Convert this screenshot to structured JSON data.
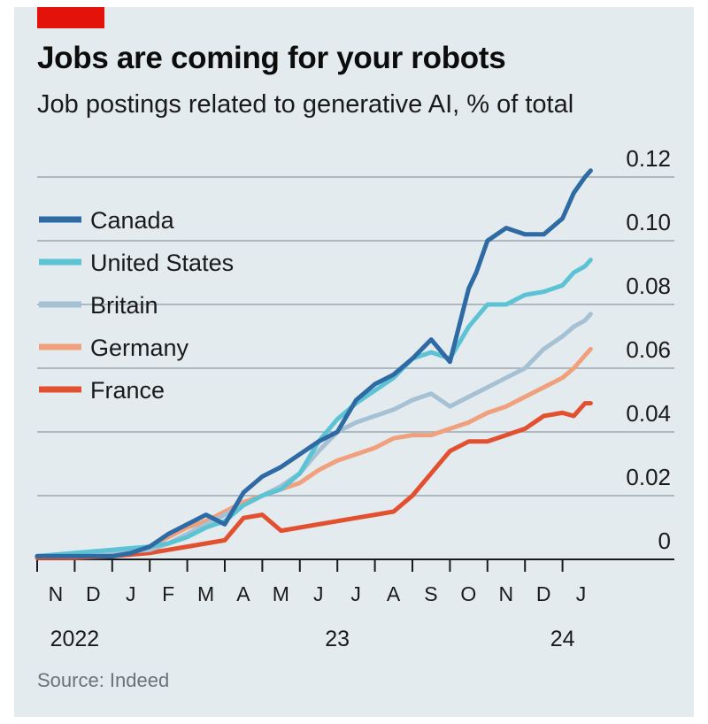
{
  "header": {
    "title": "Jobs are coming for your robots",
    "subtitle": "Job postings related to generative AI, % of total"
  },
  "footer": {
    "source": "Source: Indeed"
  },
  "colors": {
    "Canada": "#2e6aa3",
    "United States": "#5cc3d4",
    "Britain": "#a6c1d3",
    "Germany": "#f0a07c",
    "France": "#e3502f",
    "accent": "#e3120b",
    "grid": "#9ba8b0",
    "axis": "#1a1a1a"
  },
  "chart_data": {
    "type": "line",
    "title": "Jobs are coming for your robots",
    "subtitle": "Job postings related to generative AI, % of total",
    "xlabel": "",
    "ylabel": "% of total",
    "ylim": [
      0,
      0.12
    ],
    "yticks": [
      0,
      0.02,
      0.04,
      0.06,
      0.08,
      0.1,
      0.12
    ],
    "ytick_labels": [
      "0",
      "0.02",
      "0.04",
      "0.06",
      "0.08",
      "0.10",
      "0.12"
    ],
    "xlim": [
      0,
      14.75
    ],
    "month_ticks": [
      "N",
      "D",
      "J",
      "F",
      "M",
      "A",
      "M",
      "J",
      "J",
      "A",
      "S",
      "O",
      "N",
      "D",
      "J"
    ],
    "year_labels": [
      {
        "label": "2022",
        "month_index": 1
      },
      {
        "label": "23",
        "month_index": 8
      },
      {
        "label": "24",
        "month_index": 14
      }
    ],
    "legend_position": "top-left",
    "grid": true,
    "series": [
      {
        "name": "Canada",
        "x": [
          0,
          1,
          2,
          2.5,
          3,
          3.5,
          4,
          4.5,
          5,
          5.5,
          6,
          6.5,
          7,
          7.5,
          8,
          8.5,
          9,
          9.5,
          10,
          10.5,
          11,
          11.5,
          11.7,
          12,
          12.5,
          13,
          13.5,
          14,
          14.3,
          14.6,
          14.75
        ],
        "values": [
          0.001,
          0.001,
          0.001,
          0.002,
          0.004,
          0.008,
          0.011,
          0.014,
          0.011,
          0.021,
          0.026,
          0.029,
          0.033,
          0.037,
          0.04,
          0.05,
          0.055,
          0.058,
          0.063,
          0.069,
          0.062,
          0.085,
          0.09,
          0.1,
          0.104,
          0.102,
          0.102,
          0.107,
          0.115,
          0.12,
          0.122
        ]
      },
      {
        "name": "United States",
        "x": [
          0,
          1,
          2,
          3,
          3.5,
          4,
          4.5,
          5,
          5.5,
          6,
          6.5,
          7,
          7.5,
          8,
          8.5,
          9,
          9.5,
          10,
          10.5,
          11,
          11.5,
          12,
          12.5,
          13,
          13.5,
          14,
          14.3,
          14.6,
          14.75
        ],
        "values": [
          0.001,
          0.002,
          0.003,
          0.004,
          0.005,
          0.007,
          0.01,
          0.012,
          0.017,
          0.02,
          0.022,
          0.027,
          0.037,
          0.044,
          0.049,
          0.053,
          0.057,
          0.063,
          0.065,
          0.063,
          0.073,
          0.08,
          0.08,
          0.083,
          0.084,
          0.086,
          0.09,
          0.092,
          0.094
        ]
      },
      {
        "name": "Britain",
        "x": [
          0,
          1,
          2,
          3,
          3.5,
          4,
          4.5,
          5,
          5.5,
          6,
          6.5,
          7,
          7.5,
          8,
          8.5,
          9,
          9.5,
          10,
          10.5,
          11,
          11.5,
          12,
          12.5,
          13,
          13.5,
          14,
          14.3,
          14.6,
          14.75
        ],
        "values": [
          0.001,
          0.001,
          0.002,
          0.003,
          0.005,
          0.008,
          0.011,
          0.014,
          0.017,
          0.02,
          0.023,
          0.027,
          0.034,
          0.04,
          0.043,
          0.045,
          0.047,
          0.05,
          0.052,
          0.048,
          0.051,
          0.054,
          0.057,
          0.06,
          0.066,
          0.07,
          0.073,
          0.075,
          0.077
        ]
      },
      {
        "name": "Germany",
        "x": [
          0,
          1,
          2,
          3,
          3.5,
          4,
          4.5,
          5,
          5.5,
          6,
          6.5,
          7,
          7.5,
          8,
          8.5,
          9,
          9.5,
          10,
          10.5,
          11,
          11.5,
          12,
          12.5,
          13,
          13.5,
          14,
          14.3,
          14.6,
          14.75
        ],
        "values": [
          0.001,
          0.001,
          0.002,
          0.004,
          0.007,
          0.01,
          0.012,
          0.015,
          0.018,
          0.02,
          0.022,
          0.024,
          0.028,
          0.031,
          0.033,
          0.035,
          0.038,
          0.039,
          0.039,
          0.041,
          0.043,
          0.046,
          0.048,
          0.051,
          0.054,
          0.057,
          0.06,
          0.064,
          0.066
        ]
      },
      {
        "name": "France",
        "x": [
          0,
          1,
          2,
          3,
          3.5,
          4,
          4.5,
          5,
          5.5,
          6,
          6.5,
          7,
          7.5,
          8,
          8.5,
          9,
          9.5,
          10,
          10.5,
          11,
          11.5,
          12,
          12.5,
          13,
          13.5,
          14,
          14.3,
          14.6,
          14.75
        ],
        "values": [
          0.0005,
          0.0005,
          0.001,
          0.002,
          0.003,
          0.004,
          0.005,
          0.006,
          0.013,
          0.014,
          0.009,
          0.01,
          0.011,
          0.012,
          0.013,
          0.014,
          0.015,
          0.02,
          0.027,
          0.034,
          0.037,
          0.037,
          0.039,
          0.041,
          0.045,
          0.046,
          0.045,
          0.049,
          0.049
        ]
      }
    ]
  }
}
